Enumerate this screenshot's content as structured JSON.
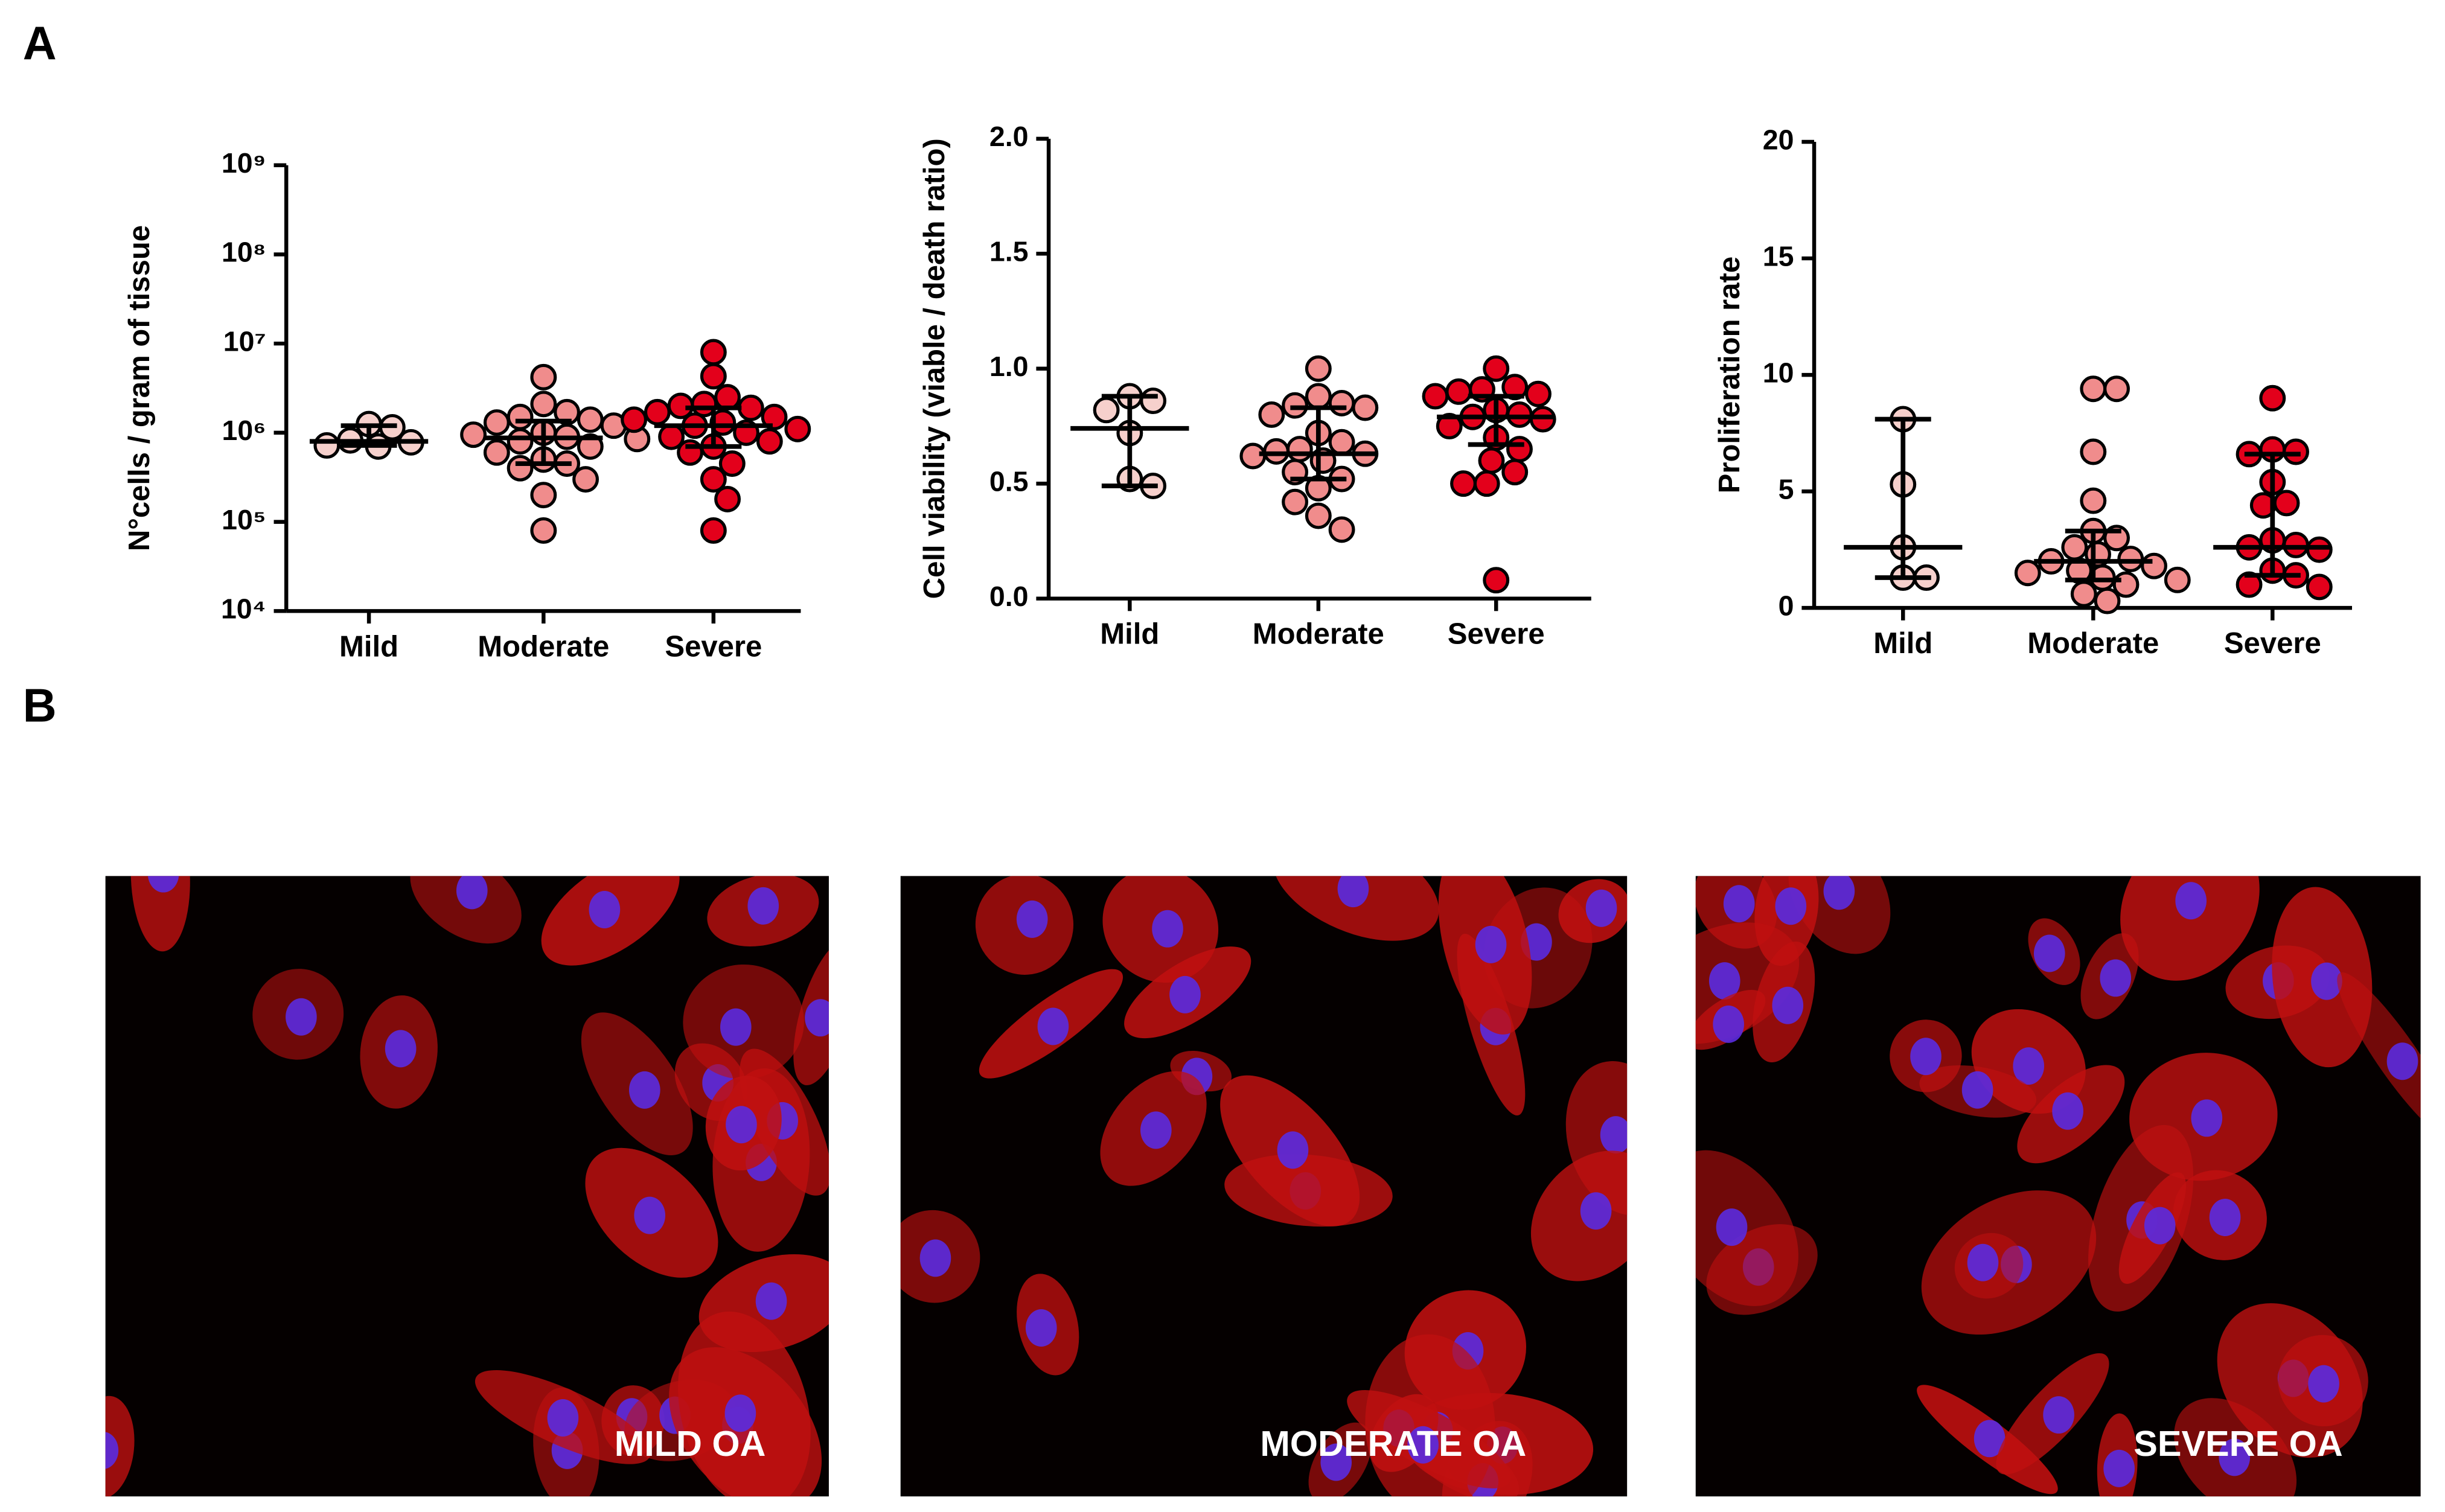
{
  "panel_labels": [
    "A",
    "B"
  ],
  "chart_data": [
    {
      "type": "dot",
      "y_label": "N°cells / gram of tissue",
      "log_scale": true,
      "categories": [
        "Mild",
        "Moderate",
        "Severe"
      ],
      "colors": [
        "#f6d0cc",
        "#f08c8c",
        "#e3001b"
      ],
      "values": [
        [
          780000,
          720000,
          1150000,
          1250000,
          700000,
          820000
        ],
        [
          4200000,
          2100000,
          1700000,
          1500000,
          1400000,
          1300000,
          1200000,
          1000000,
          950000,
          900000,
          850000,
          800000,
          700000,
          600000,
          500000,
          450000,
          400000,
          300000,
          200000,
          80000
        ],
        [
          8000000,
          4300000,
          2500000,
          2100000,
          2000000,
          1900000,
          1700000,
          1500000,
          1400000,
          1300000,
          1200000,
          1100000,
          1000000,
          900000,
          800000,
          700000,
          600000,
          450000,
          300000,
          180000,
          80000
        ]
      ],
      "medians": [
        800000,
        875000,
        1200000
      ],
      "q1": [
        720000,
        450000,
        700000
      ],
      "q3": [
        1200000,
        1350000,
        1900000
      ],
      "ylim": [
        10000,
        1000000000
      ],
      "yticks": [
        {
          "value": 10000,
          "label": "10⁴"
        },
        {
          "value": 100000,
          "label": "10⁵"
        },
        {
          "value": 1000000,
          "label": "10⁶"
        },
        {
          "value": 10000000,
          "label": "10⁷"
        },
        {
          "value": 100000000,
          "label": "10⁸"
        },
        {
          "value": 1000000000,
          "label": "10⁹"
        }
      ]
    },
    {
      "type": "dot",
      "y_label": "Cell viability (viable / death ratio)",
      "log_scale": false,
      "categories": [
        "Mild",
        "Moderate",
        "Severe"
      ],
      "colors": [
        "#f6d0cc",
        "#f08c8c",
        "#e3001b"
      ],
      "values": [
        [
          0.86,
          0.88,
          0.82,
          0.72,
          0.52,
          0.49
        ],
        [
          1.0,
          0.88,
          0.85,
          0.84,
          0.83,
          0.8,
          0.72,
          0.68,
          0.65,
          0.64,
          0.63,
          0.62,
          0.6,
          0.55,
          0.52,
          0.48,
          0.42,
          0.36,
          0.3
        ],
        [
          1.0,
          0.92,
          0.91,
          0.9,
          0.89,
          0.88,
          0.82,
          0.8,
          0.79,
          0.78,
          0.75,
          0.7,
          0.65,
          0.6,
          0.55,
          0.5,
          0.5,
          0.08
        ]
      ],
      "medians": [
        0.74,
        0.63,
        0.79
      ],
      "q1": [
        0.49,
        0.52,
        0.67
      ],
      "q3": [
        0.88,
        0.83,
        0.88
      ],
      "ylim": [
        0,
        2
      ],
      "yticks": [
        {
          "value": 0,
          "label": "0.0"
        },
        0.5,
        {
          "value": 1,
          "label": "1.0"
        },
        1.5,
        {
          "value": 2,
          "label": "2.0"
        }
      ]
    },
    {
      "type": "dot",
      "y_label": "Proliferation rate",
      "log_scale": false,
      "categories": [
        "Mild",
        "Moderate",
        "Severe"
      ],
      "colors": [
        "#f6d0cc",
        "#f08c8c",
        "#e3001b"
      ],
      "values": [
        [
          8.1,
          5.3,
          2.6,
          1.3,
          1.3
        ],
        [
          9.4,
          9.4,
          6.7,
          4.6,
          3.3,
          3.0,
          2.6,
          2.3,
          2.1,
          2.0,
          1.8,
          1.6,
          1.5,
          1.3,
          1.2,
          1.0,
          0.6,
          0.3
        ],
        [
          9.0,
          6.8,
          6.7,
          6.6,
          5.4,
          4.5,
          4.4,
          2.9,
          2.7,
          2.6,
          2.5,
          1.6,
          1.4,
          1.0,
          0.9
        ]
      ],
      "medians": [
        2.6,
        2.0,
        2.6
      ],
      "q1": [
        1.3,
        1.2,
        1.4
      ],
      "q3": [
        8.1,
        3.3,
        6.6
      ],
      "ylim": [
        0,
        20
      ],
      "yticks": [
        0,
        5,
        10,
        15,
        20
      ]
    }
  ],
  "images": [
    {
      "caption": "MILD OA"
    },
    {
      "caption": "MODERATE OA"
    },
    {
      "caption": "SEVERE OA"
    }
  ]
}
